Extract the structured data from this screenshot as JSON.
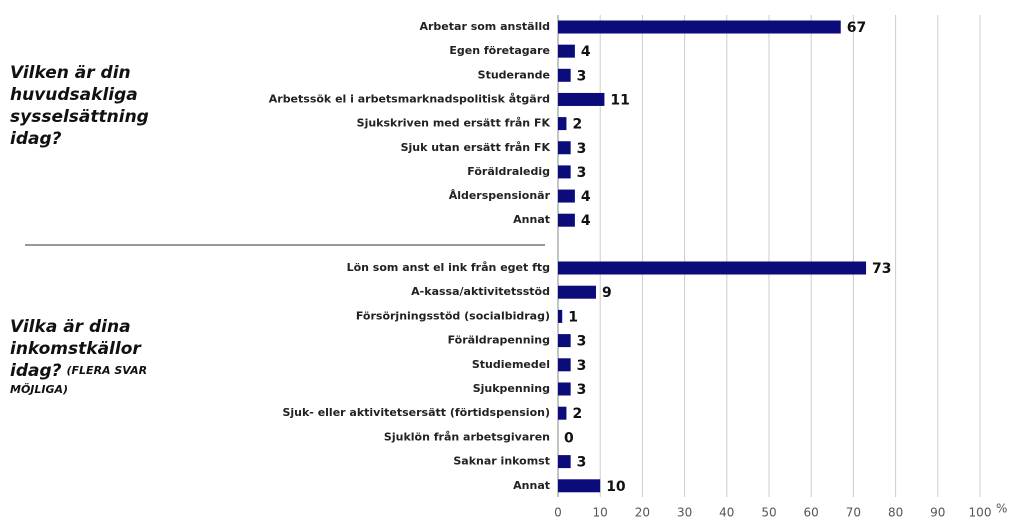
{
  "chart_data": [
    {
      "type": "bar",
      "orientation": "horizontal",
      "question_lines": [
        "Vilken är din",
        "huvudsakliga",
        "sysselsättning",
        "idag?"
      ],
      "categories": [
        "Arbetar som anställd",
        "Egen företagare",
        "Studerande",
        "Arbetssök el i arbetsmarknadspolitisk åtgärd",
        "Sjukskriven med ersätt från FK",
        "Sjuk utan ersätt från FK",
        "Föräldraledig",
        "Ålderspensionär",
        "Annat"
      ],
      "values": [
        67,
        4,
        3,
        11,
        2,
        3,
        3,
        4,
        4
      ],
      "color": "#0b0b7a",
      "xlim": [
        0,
        100
      ],
      "xticks": [
        0,
        10,
        20,
        30,
        40,
        50,
        60,
        70,
        80,
        90,
        100
      ],
      "grid": true
    },
    {
      "type": "bar",
      "orientation": "horizontal",
      "question_lines": [
        "Vilka är dina",
        "inkomstkällor",
        "idag?"
      ],
      "note_lines": [
        "(FLERA SVAR",
        "MÖJLIGA)"
      ],
      "categories": [
        "Lön som anst el ink från eget ftg",
        "A-kassa/aktivitetsstöd",
        "Försörjningsstöd (socialbidrag)",
        "Föräldrapenning",
        "Studiemedel",
        "Sjukpenning",
        "Sjuk- eller aktivitetsersätt (förtidspension)",
        "Sjuklön från arbetsgivaren",
        "Saknar inkomst",
        "Annat"
      ],
      "values": [
        73,
        9,
        1,
        3,
        3,
        3,
        2,
        0,
        3,
        10
      ],
      "color": "#0b0b7a",
      "xlim": [
        0,
        100
      ],
      "xticks": [
        0,
        10,
        20,
        30,
        40,
        50,
        60,
        70,
        80,
        90,
        100
      ],
      "xunit": "%",
      "grid": true
    }
  ]
}
